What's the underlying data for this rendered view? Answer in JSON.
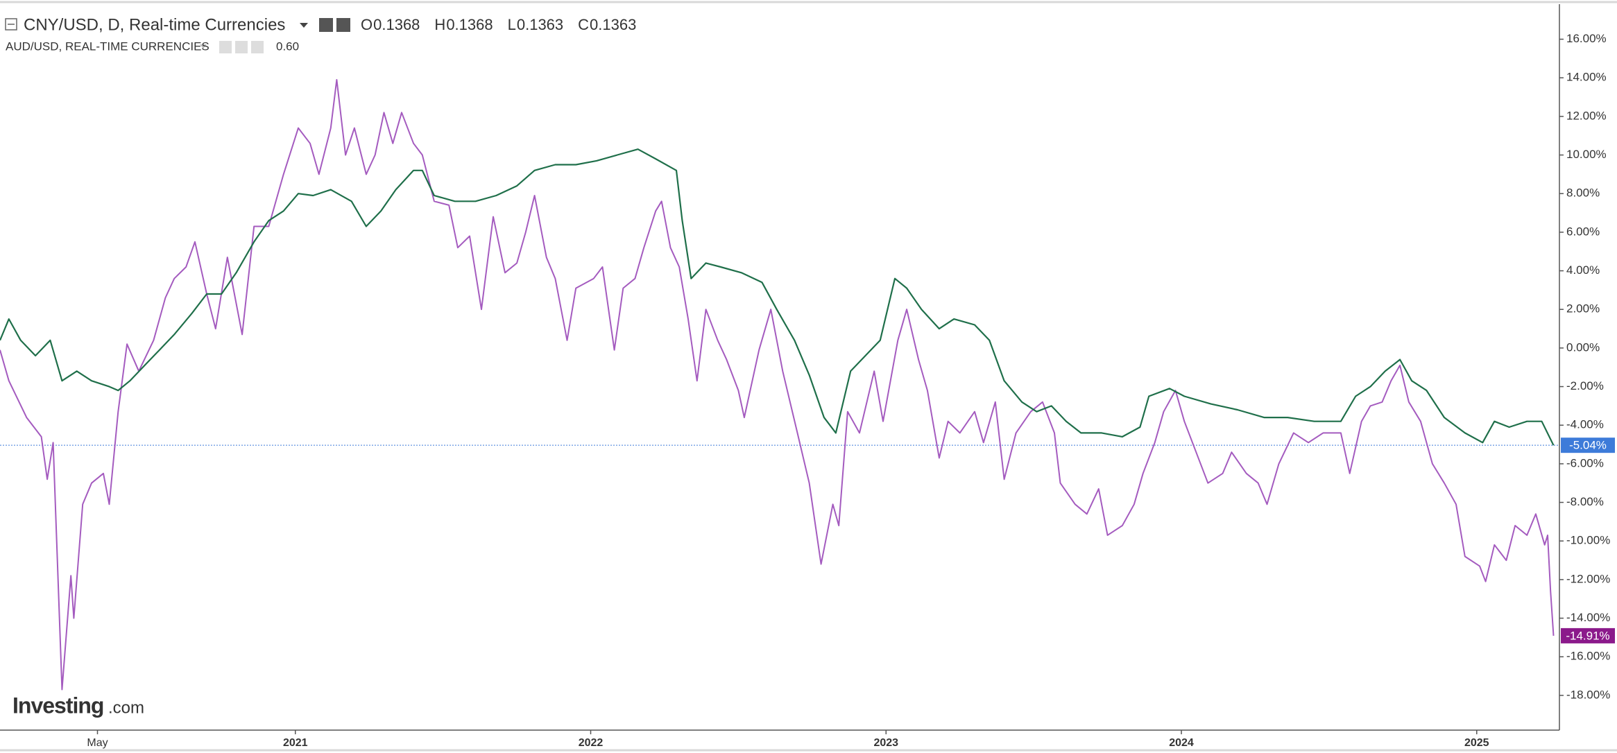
{
  "chart_data": {
    "type": "line",
    "logo": [
      "Investing",
      ".com"
    ],
    "xlim": [
      2020.0,
      2025.28
    ],
    "xticks": [
      {
        "value": 2020.33,
        "label": "May"
      },
      {
        "value": 2021,
        "label": "2021"
      },
      {
        "value": 2022,
        "label": "2022"
      },
      {
        "value": 2023,
        "label": "2023"
      },
      {
        "value": 2024,
        "label": "2024"
      },
      {
        "value": 2025,
        "label": "2025"
      }
    ],
    "ylim": [
      -19.8,
      17.78
    ],
    "yticks": [
      {
        "value": 16,
        "label": "16.00%"
      },
      {
        "value": 14,
        "label": "14.00%"
      },
      {
        "value": 12,
        "label": "12.00%"
      },
      {
        "value": 10,
        "label": "10.00%"
      },
      {
        "value": 8,
        "label": "8.00%"
      },
      {
        "value": 6,
        "label": "6.00%"
      },
      {
        "value": 4,
        "label": "4.00%"
      },
      {
        "value": 2,
        "label": "2.00%"
      },
      {
        "value": 0,
        "label": "0.00%"
      },
      {
        "value": -2,
        "label": "-2.00%"
      },
      {
        "value": -4,
        "label": "-4.00%"
      },
      {
        "value": -6,
        "label": "-6.00%"
      },
      {
        "value": -8,
        "label": "-8.00%"
      },
      {
        "value": -10,
        "label": "-10.00%"
      },
      {
        "value": -12,
        "label": "-12.00%"
      },
      {
        "value": -14,
        "label": "-14.00%"
      },
      {
        "value": -16,
        "label": "-16.00%"
      },
      {
        "value": -18,
        "label": "-18.00%"
      }
    ],
    "grid": false,
    "series": [
      {
        "name": "CNY/USD, D, Real-time Currencies",
        "color": "#1f6f4a",
        "tag_color": "#3d7bd9",
        "ohlc": [
          {
            "key": "O",
            "value": 0.1368
          },
          {
            "key": "H",
            "value": 0.1368
          },
          {
            "key": "L",
            "value": 0.1363
          },
          {
            "key": "C",
            "value": 0.1363
          }
        ],
        "end_label": {
          "value": -5.04,
          "label": "-5.04%"
        },
        "x": [
          2020.0,
          2020.03,
          2020.07,
          2020.12,
          2020.17,
          2020.21,
          2020.26,
          2020.31,
          2020.37,
          2020.4,
          2020.44,
          2020.49,
          2020.54,
          2020.59,
          2020.65,
          2020.7,
          2020.75,
          2020.8,
          2020.86,
          2020.91,
          2020.96,
          2021.01,
          2021.06,
          2021.12,
          2021.19,
          2021.24,
          2021.29,
          2021.34,
          2021.4,
          2021.43,
          2021.47,
          2021.54,
          2021.61,
          2021.68,
          2021.75,
          2021.81,
          2021.88,
          2021.95,
          2022.02,
          2022.09,
          2022.16,
          2022.22,
          2022.29,
          2022.31,
          2022.34,
          2022.39,
          2022.44,
          2022.51,
          2022.58,
          2022.63,
          2022.69,
          2022.74,
          2022.79,
          2022.83,
          2022.88,
          2022.93,
          2022.98,
          2023.03,
          2023.07,
          2023.12,
          2023.18,
          2023.23,
          2023.3,
          2023.35,
          2023.4,
          2023.46,
          2023.51,
          2023.56,
          2023.61,
          2023.66,
          2023.73,
          2023.8,
          2023.86,
          2023.89,
          2023.96,
          2024.01,
          2024.1,
          2024.19,
          2024.28,
          2024.36,
          2024.45,
          2024.54,
          2024.59,
          2024.64,
          2024.69,
          2024.74,
          2024.78,
          2024.83,
          2024.89,
          2024.96,
          2025.02,
          2025.06,
          2025.11,
          2025.17,
          2025.22,
          2025.26
        ],
        "values": [
          0.4,
          1.5,
          0.4,
          -0.4,
          0.4,
          -1.7,
          -1.2,
          -1.7,
          -2.0,
          -2.2,
          -1.7,
          -0.9,
          -0.1,
          0.7,
          1.8,
          2.8,
          2.8,
          3.9,
          5.5,
          6.6,
          7.1,
          8.0,
          7.9,
          8.2,
          7.6,
          6.3,
          7.1,
          8.2,
          9.2,
          9.2,
          7.9,
          7.6,
          7.6,
          7.9,
          8.4,
          9.2,
          9.5,
          9.5,
          9.7,
          10.0,
          10.3,
          9.8,
          9.2,
          6.6,
          3.6,
          4.4,
          4.2,
          3.9,
          3.4,
          2.0,
          0.4,
          -1.4,
          -3.6,
          -4.4,
          -1.2,
          -0.4,
          0.4,
          3.6,
          3.1,
          2.0,
          1.0,
          1.5,
          1.2,
          0.4,
          -1.7,
          -2.8,
          -3.3,
          -3.0,
          -3.8,
          -4.4,
          -4.4,
          -4.6,
          -4.1,
          -2.5,
          -2.1,
          -2.5,
          -2.9,
          -3.2,
          -3.6,
          -3.6,
          -3.8,
          -3.8,
          -2.5,
          -2.0,
          -1.2,
          -0.6,
          -1.7,
          -2.2,
          -3.6,
          -4.4,
          -4.9,
          -3.8,
          -4.1,
          -3.8,
          -3.8,
          -5.04
        ]
      },
      {
        "name": "AUD/USD, REAL-TIME CURRENCIES",
        "color": "#a45bbf",
        "tag_color": "#8b1a8b",
        "quote": "0.60",
        "end_label": {
          "value": -14.91,
          "label": "-14.91%"
        },
        "x": [
          2020.0,
          2020.03,
          2020.09,
          2020.14,
          2020.16,
          2020.18,
          2020.21,
          2020.24,
          2020.25,
          2020.28,
          2020.31,
          2020.35,
          2020.37,
          2020.4,
          2020.43,
          2020.47,
          2020.52,
          2020.56,
          2020.59,
          2020.63,
          2020.66,
          2020.7,
          2020.73,
          2020.77,
          2020.82,
          2020.86,
          2020.91,
          2020.96,
          2021.01,
          2021.05,
          2021.08,
          2021.12,
          2021.14,
          2021.17,
          2021.2,
          2021.24,
          2021.27,
          2021.3,
          2021.33,
          2021.36,
          2021.4,
          2021.43,
          2021.47,
          2021.52,
          2021.55,
          2021.59,
          2021.63,
          2021.67,
          2021.71,
          2021.75,
          2021.78,
          2021.81,
          2021.85,
          2021.88,
          2021.92,
          2021.95,
          2022.01,
          2022.04,
          2022.08,
          2022.11,
          2022.15,
          2022.18,
          2022.22,
          2022.24,
          2022.27,
          2022.3,
          2022.33,
          2022.36,
          2022.39,
          2022.43,
          2022.46,
          2022.5,
          2022.52,
          2022.57,
          2022.61,
          2022.65,
          2022.7,
          2022.74,
          2022.78,
          2022.82,
          2022.84,
          2022.87,
          2022.91,
          2022.96,
          2022.99,
          2023.04,
          2023.07,
          2023.11,
          2023.14,
          2023.18,
          2023.21,
          2023.25,
          2023.3,
          2023.33,
          2023.37,
          2023.4,
          2023.44,
          2023.49,
          2023.53,
          2023.57,
          2023.59,
          2023.64,
          2023.68,
          2023.72,
          2023.75,
          2023.8,
          2023.84,
          2023.87,
          2023.91,
          2023.94,
          2023.98,
          2024.01,
          2024.05,
          2024.09,
          2024.14,
          2024.17,
          2024.22,
          2024.26,
          2024.29,
          2024.33,
          2024.38,
          2024.43,
          2024.48,
          2024.54,
          2024.57,
          2024.61,
          2024.64,
          2024.68,
          2024.71,
          2024.74,
          2024.77,
          2024.81,
          2024.85,
          2024.89,
          2024.93,
          2024.96,
          2025.01,
          2025.03,
          2025.06,
          2025.1,
          2025.13,
          2025.17,
          2025.2,
          2025.23,
          2025.24,
          2025.25,
          2025.26
        ],
        "values": [
          -0.1,
          -1.7,
          -3.6,
          -4.6,
          -6.8,
          -4.9,
          -17.7,
          -11.8,
          -14.0,
          -8.1,
          -7.0,
          -6.5,
          -8.1,
          -3.3,
          0.2,
          -1.2,
          0.4,
          2.6,
          3.6,
          4.2,
          5.5,
          2.8,
          1.0,
          4.7,
          0.7,
          6.3,
          6.3,
          9.0,
          11.4,
          10.6,
          9.0,
          11.4,
          13.9,
          10.0,
          11.4,
          9.0,
          10.0,
          12.2,
          10.6,
          12.2,
          10.6,
          10.0,
          7.6,
          7.4,
          5.2,
          5.8,
          2.0,
          6.8,
          3.9,
          4.4,
          6.0,
          7.9,
          4.7,
          3.6,
          0.4,
          3.1,
          3.6,
          4.2,
          -0.1,
          3.1,
          3.6,
          5.2,
          7.1,
          7.6,
          5.2,
          4.2,
          1.5,
          -1.7,
          2.0,
          0.4,
          -0.6,
          -2.2,
          -3.6,
          -0.1,
          2.0,
          -1.2,
          -4.4,
          -7.0,
          -11.2,
          -8.1,
          -9.2,
          -3.3,
          -4.4,
          -1.2,
          -3.8,
          0.4,
          2.0,
          -0.6,
          -2.2,
          -5.7,
          -3.8,
          -4.4,
          -3.3,
          -4.9,
          -2.8,
          -6.8,
          -4.4,
          -3.3,
          -2.8,
          -4.4,
          -7.0,
          -8.1,
          -8.6,
          -7.3,
          -9.7,
          -9.2,
          -8.1,
          -6.5,
          -4.9,
          -3.3,
          -2.2,
          -3.8,
          -5.4,
          -7.0,
          -6.5,
          -5.4,
          -6.5,
          -7.0,
          -8.1,
          -6.0,
          -4.4,
          -4.9,
          -4.4,
          -4.4,
          -6.5,
          -3.8,
          -3.0,
          -2.8,
          -1.7,
          -0.9,
          -2.8,
          -3.8,
          -6.0,
          -7.0,
          -8.1,
          -10.8,
          -11.3,
          -12.1,
          -10.2,
          -11.0,
          -9.2,
          -9.7,
          -8.6,
          -10.2,
          -9.7,
          -12.6,
          -14.91
        ]
      }
    ]
  }
}
